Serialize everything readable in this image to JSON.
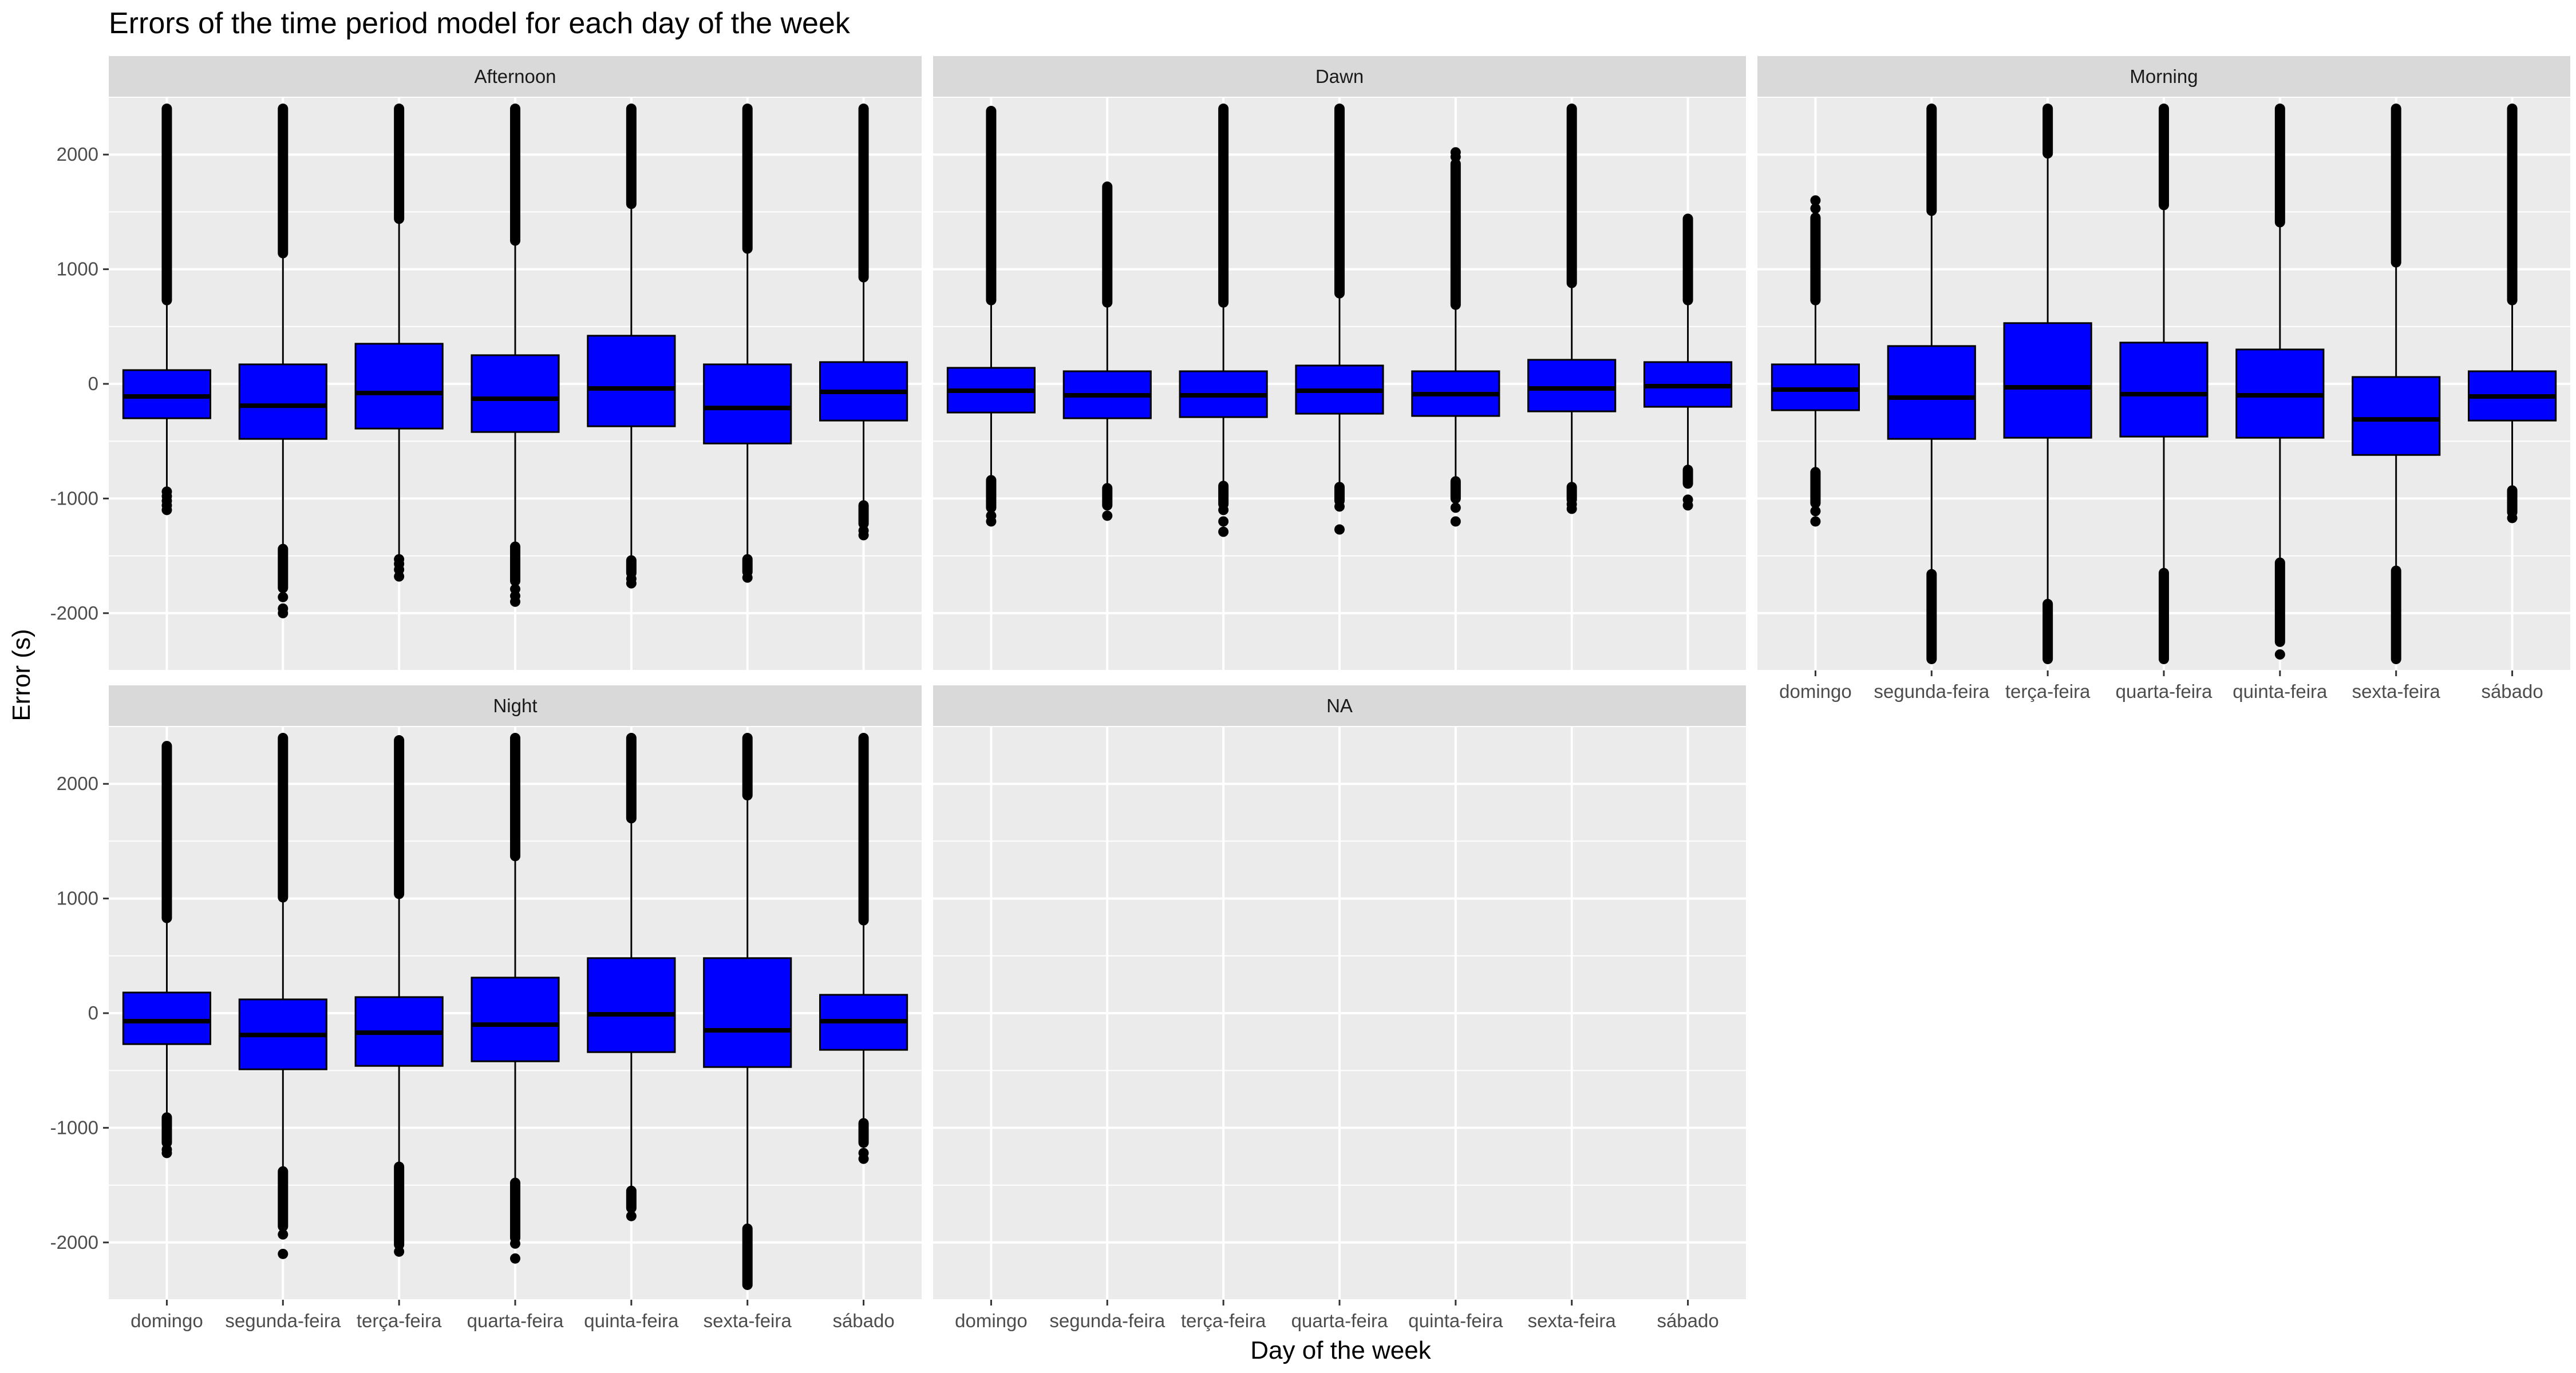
{
  "chart_data": {
    "type": "box",
    "title": "Errors of the time period model for each day of the week",
    "xlabel": "Day of the week",
    "ylabel": "Error (s)",
    "categories": [
      "domingo",
      "segunda-feira",
      "terça-feira",
      "quarta-feira",
      "quinta-feira",
      "sexta-feira",
      "sábado"
    ],
    "ylim": [
      -2500,
      2500
    ],
    "yticks": [
      -2000,
      -1000,
      0,
      1000,
      2000
    ],
    "colors": {
      "box_fill": "#0000ff",
      "panel_bg": "#ebebeb",
      "strip_bg": "#d9d9d9",
      "grid": "#ffffff",
      "ink": "#000000"
    },
    "facets": [
      {
        "name": "Afternoon",
        "boxes": [
          {
            "q1": -300,
            "median": -110,
            "q3": 120,
            "lower_whisker": -920,
            "upper_whisker": 720,
            "outliers_low": [
              -940,
              -980,
              -1020,
              -1060,
              -1100
            ],
            "outliers_high_range": [
              730,
              2400
            ]
          },
          {
            "q1": -480,
            "median": -190,
            "q3": 170,
            "lower_whisker": -1430,
            "upper_whisker": 1130,
            "outliers_low_range": [
              -1440,
              -1780
            ],
            "outliers_low": [
              -1860,
              -1960,
              -2000
            ],
            "outliers_high_range": [
              1140,
              2400
            ]
          },
          {
            "q1": -390,
            "median": -80,
            "q3": 350,
            "lower_whisker": -1500,
            "upper_whisker": 1430,
            "outliers_low": [
              -1530,
              -1570,
              -1620,
              -1680
            ],
            "outliers_high_range": [
              1440,
              2400
            ]
          },
          {
            "q1": -420,
            "median": -130,
            "q3": 250,
            "lower_whisker": -1410,
            "upper_whisker": 1240,
            "outliers_low_range": [
              -1420,
              -1720
            ],
            "outliers_low": [
              -1790,
              -1850,
              -1900
            ],
            "outliers_high_range": [
              1250,
              2400
            ]
          },
          {
            "q1": -370,
            "median": -40,
            "q3": 420,
            "lower_whisker": -1530,
            "upper_whisker": 1560,
            "outliers_low_range": [
              -1540,
              -1650
            ],
            "outliers_low": [
              -1700,
              -1740
            ],
            "outliers_high_range": [
              1570,
              2400
            ]
          },
          {
            "q1": -520,
            "median": -210,
            "q3": 170,
            "lower_whisker": -1520,
            "upper_whisker": 1170,
            "outliers_low_range": [
              -1530,
              -1640
            ],
            "outliers_low": [
              -1690
            ],
            "outliers_high_range": [
              1180,
              2400
            ]
          },
          {
            "q1": -320,
            "median": -70,
            "q3": 190,
            "lower_whisker": -1050,
            "upper_whisker": 920,
            "outliers_low_range": [
              -1060,
              -1220
            ],
            "outliers_low": [
              -1280,
              -1320
            ],
            "outliers_high_range": [
              930,
              2400
            ]
          }
        ]
      },
      {
        "name": "Dawn",
        "boxes": [
          {
            "q1": -250,
            "median": -60,
            "q3": 140,
            "lower_whisker": -830,
            "upper_whisker": 720,
            "outliers_low_range": [
              -840,
              -1080
            ],
            "outliers_low": [
              -1150,
              -1200
            ],
            "outliers_high_range": [
              730,
              2380
            ]
          },
          {
            "q1": -300,
            "median": -100,
            "q3": 110,
            "lower_whisker": -900,
            "upper_whisker": 700,
            "outliers_low_range": [
              -910,
              -1060
            ],
            "outliers_low": [
              -1150
            ],
            "outliers_high_range": [
              710,
              1720
            ]
          },
          {
            "q1": -290,
            "median": -100,
            "q3": 110,
            "lower_whisker": -880,
            "upper_whisker": 700,
            "outliers_low_range": [
              -890,
              -1050
            ],
            "outliers_low": [
              -1100,
              -1200,
              -1290
            ],
            "outliers_high_range": [
              710,
              2400
            ]
          },
          {
            "q1": -260,
            "median": -60,
            "q3": 160,
            "lower_whisker": -890,
            "upper_whisker": 780,
            "outliers_low_range": [
              -900,
              -1020
            ],
            "outliers_low": [
              -1070,
              -1270
            ],
            "outliers_high_range": [
              790,
              2400
            ]
          },
          {
            "q1": -280,
            "median": -90,
            "q3": 110,
            "lower_whisker": -840,
            "upper_whisker": 680,
            "outliers_low_range": [
              -850,
              -1000
            ],
            "outliers_low": [
              -1080,
              -1200
            ],
            "outliers_high_range": [
              690,
              1920
            ],
            "outliers_high": [
              1980,
              2020
            ]
          },
          {
            "q1": -240,
            "median": -40,
            "q3": 210,
            "lower_whisker": -890,
            "upper_whisker": 870,
            "outliers_low_range": [
              -900,
              -1010
            ],
            "outliers_low": [
              -1050,
              -1090
            ],
            "outliers_high_range": [
              880,
              2400
            ]
          },
          {
            "q1": -200,
            "median": -20,
            "q3": 190,
            "lower_whisker": -740,
            "upper_whisker": 720,
            "outliers_low_range": [
              -750,
              -870
            ],
            "outliers_low": [
              -1010,
              -1060
            ],
            "outliers_high_range": [
              730,
              1440
            ]
          }
        ]
      },
      {
        "name": "Morning",
        "boxes": [
          {
            "q1": -230,
            "median": -50,
            "q3": 170,
            "lower_whisker": -760,
            "upper_whisker": 720,
            "outliers_low_range": [
              -770,
              -1040
            ],
            "outliers_low": [
              -1110,
              -1200
            ],
            "outliers_high_range": [
              730,
              1450
            ],
            "outliers_high": [
              1530,
              1600
            ]
          },
          {
            "q1": -480,
            "median": -120,
            "q3": 330,
            "lower_whisker": -1650,
            "upper_whisker": 1500,
            "outliers_low_range": [
              -1660,
              -2400
            ],
            "outliers_high_range": [
              1510,
              2400
            ]
          },
          {
            "q1": -470,
            "median": -30,
            "q3": 530,
            "lower_whisker": -1910,
            "upper_whisker": 2000,
            "outliers_low_range": [
              -1920,
              -2400
            ],
            "outliers_high_range": [
              2010,
              2400
            ]
          },
          {
            "q1": -460,
            "median": -90,
            "q3": 360,
            "lower_whisker": -1640,
            "upper_whisker": 1550,
            "outliers_low_range": [
              -1650,
              -2400
            ],
            "outliers_high_range": [
              1560,
              2400
            ]
          },
          {
            "q1": -470,
            "median": -100,
            "q3": 300,
            "lower_whisker": -1550,
            "upper_whisker": 1400,
            "outliers_low_range": [
              -1560,
              -2250
            ],
            "outliers_low": [
              -2360
            ],
            "outliers_high_range": [
              1410,
              2400
            ]
          },
          {
            "q1": -620,
            "median": -310,
            "q3": 60,
            "lower_whisker": -1620,
            "upper_whisker": 1050,
            "outliers_low_range": [
              -1630,
              -2400
            ],
            "outliers_high_range": [
              1060,
              2400
            ]
          },
          {
            "q1": -320,
            "median": -110,
            "q3": 110,
            "lower_whisker": -920,
            "upper_whisker": 720,
            "outliers_low_range": [
              -930,
              -1120
            ],
            "outliers_low": [
              -1170
            ],
            "outliers_high_range": [
              730,
              2400
            ]
          }
        ]
      },
      {
        "name": "Night",
        "boxes": [
          {
            "q1": -270,
            "median": -70,
            "q3": 180,
            "lower_whisker": -900,
            "upper_whisker": 820,
            "outliers_low_range": [
              -910,
              -1130
            ],
            "outliers_low": [
              -1190,
              -1220
            ],
            "outliers_high_range": [
              830,
              2330
            ]
          },
          {
            "q1": -490,
            "median": -190,
            "q3": 120,
            "lower_whisker": -1370,
            "upper_whisker": 1000,
            "outliers_low_range": [
              -1380,
              -1860
            ],
            "outliers_low": [
              -1930,
              -2100
            ],
            "outliers_high_range": [
              1010,
              2400
            ]
          },
          {
            "q1": -460,
            "median": -170,
            "q3": 140,
            "lower_whisker": -1330,
            "upper_whisker": 1030,
            "outliers_low_range": [
              -1340,
              -2020
            ],
            "outliers_low": [
              -2080
            ],
            "outliers_high_range": [
              1040,
              2380
            ]
          },
          {
            "q1": -420,
            "median": -100,
            "q3": 310,
            "lower_whisker": -1470,
            "upper_whisker": 1360,
            "outliers_low_range": [
              -1480,
              -1960
            ],
            "outliers_low": [
              -2010,
              -2140
            ],
            "outliers_high_range": [
              1370,
              2400
            ]
          },
          {
            "q1": -340,
            "median": -10,
            "q3": 480,
            "lower_whisker": -1540,
            "upper_whisker": 1690,
            "outliers_low_range": [
              -1550,
              -1700
            ],
            "outliers_low": [
              -1770
            ],
            "outliers_high_range": [
              1700,
              2400
            ]
          },
          {
            "q1": -470,
            "median": -150,
            "q3": 480,
            "lower_whisker": -1870,
            "upper_whisker": 1890,
            "outliers_low_range": [
              -1880,
              -2370
            ],
            "outliers_high_range": [
              1900,
              2400
            ]
          },
          {
            "q1": -320,
            "median": -70,
            "q3": 160,
            "lower_whisker": -950,
            "upper_whisker": 800,
            "outliers_low_range": [
              -960,
              -1130
            ],
            "outliers_low": [
              -1220,
              -1270
            ],
            "outliers_high_range": [
              810,
              2400
            ]
          }
        ]
      },
      {
        "name": "NA",
        "boxes": []
      }
    ]
  }
}
